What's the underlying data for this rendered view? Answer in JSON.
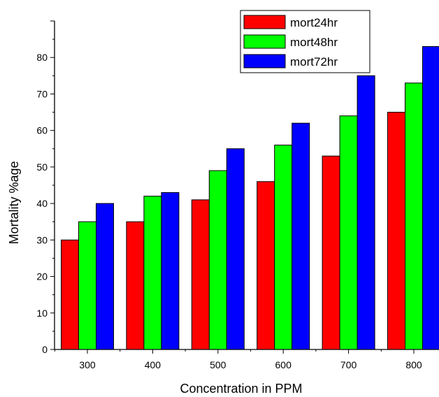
{
  "chart_data": {
    "type": "bar",
    "xlabel": "Concentration in PPM",
    "ylabel": "Mortality %age",
    "categories": [
      "300",
      "400",
      "500",
      "600",
      "700",
      "800"
    ],
    "series": [
      {
        "name": "mort24hr",
        "color": "#ff0000",
        "values": [
          30,
          35,
          41,
          46,
          53,
          65
        ]
      },
      {
        "name": "mort48hr",
        "color": "#00ff00",
        "values": [
          35,
          42,
          49,
          56,
          64,
          73
        ]
      },
      {
        "name": "mort72hr",
        "color": "#0000ff",
        "values": [
          40,
          43,
          55,
          62,
          75,
          83
        ]
      }
    ],
    "ylim": [
      0,
      90
    ],
    "yticks": [
      "0",
      "10",
      "20",
      "30",
      "40",
      "50",
      "60",
      "70",
      "80"
    ],
    "legend_position": "top-right",
    "grid": false
  }
}
